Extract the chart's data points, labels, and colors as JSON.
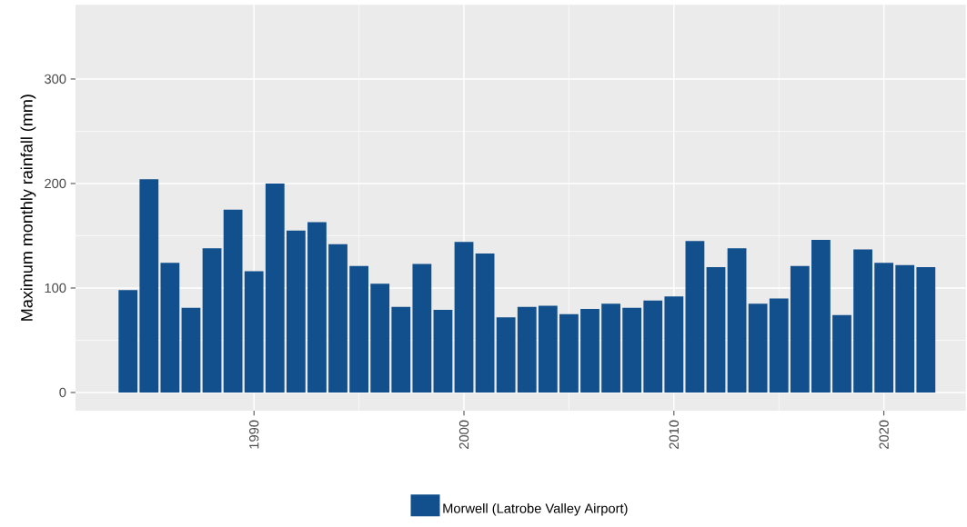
{
  "chart_data": {
    "type": "bar",
    "ylabel": "Maximum monthly rainfall (mm)",
    "x": [
      1984,
      1985,
      1986,
      1987,
      1988,
      1989,
      1990,
      1991,
      1992,
      1993,
      1994,
      1995,
      1996,
      1997,
      1998,
      1999,
      2000,
      2001,
      2002,
      2003,
      2004,
      2005,
      2006,
      2007,
      2008,
      2009,
      2010,
      2011,
      2012,
      2013,
      2014,
      2015,
      2016,
      2017,
      2018,
      2019,
      2020,
      2021,
      2022
    ],
    "series": [
      {
        "name": "Morwell (Latrobe Valley Airport)",
        "color": "#11508c",
        "values": [
          98,
          204,
          124,
          81,
          138,
          175,
          116,
          200,
          155,
          163,
          142,
          121,
          104,
          82,
          123,
          79,
          144,
          133,
          72,
          82,
          83,
          75,
          80,
          85,
          81,
          88,
          92,
          145,
          120,
          138,
          85,
          90,
          121,
          146,
          74,
          137,
          124,
          122,
          120
        ]
      }
    ],
    "xlim": [
      1981.5,
      2023.9
    ],
    "xticks": [
      1990,
      2000,
      2010,
      2020
    ],
    "ylim": [
      -17.4,
      371
    ],
    "yticks": [
      0,
      100,
      200,
      300
    ],
    "grid": true,
    "legend": "bottom"
  }
}
